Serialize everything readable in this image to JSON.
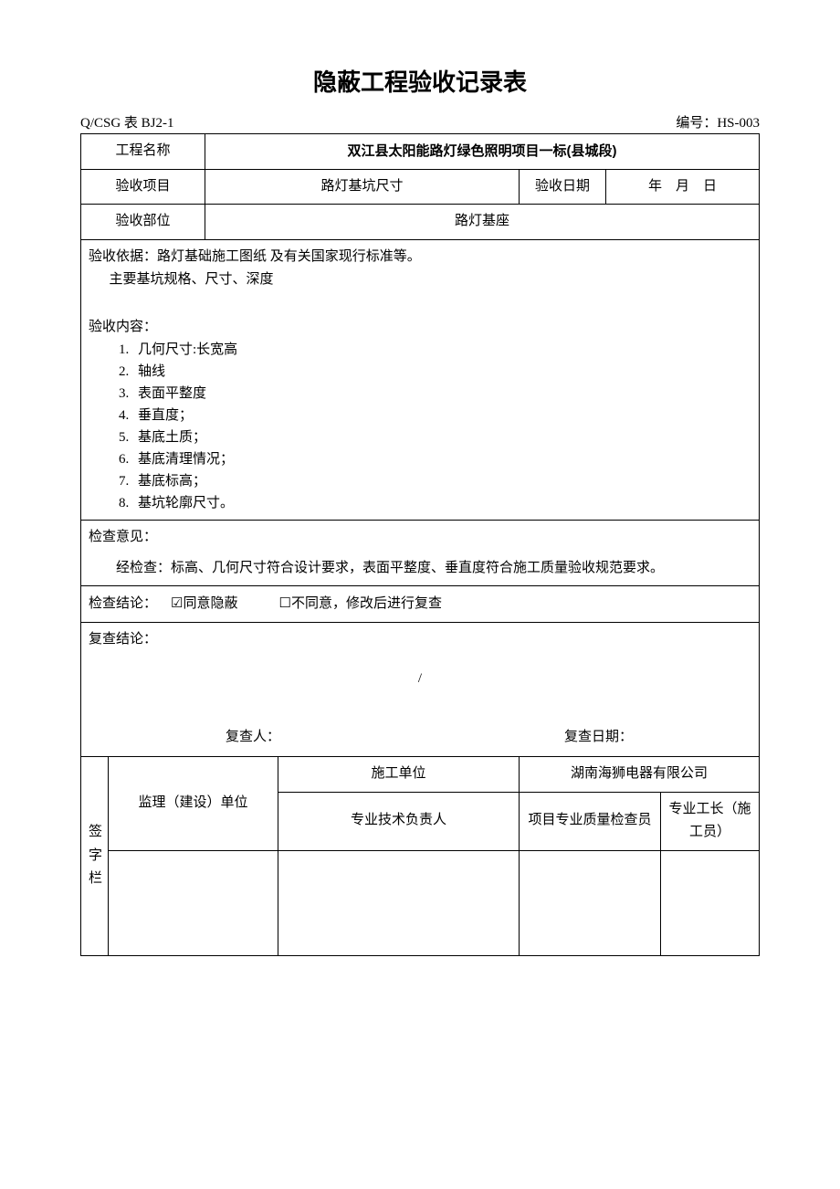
{
  "title": "隐蔽工程验收记录表",
  "meta": {
    "left": "Q/CSG 表 BJ2-1",
    "right_label": "编号：",
    "right_value": "HS-003"
  },
  "row1": {
    "label": "工程名称",
    "value": "双江县太阳能路灯绿色照明项目一标(县城段)"
  },
  "row2": {
    "label": "验收项目",
    "value": "路灯基坑尺寸",
    "date_label": "验收日期",
    "date_value": "年 月 日"
  },
  "row3": {
    "label": "验收部位",
    "value": "路灯基座"
  },
  "content": {
    "basis": "验收依据：路灯基础施工图纸 及有关国家现行标准等。",
    "spec": "主要基坑规格、尺寸、深度",
    "items_label": "验收内容：",
    "items": [
      "几何尺寸:长宽高",
      "轴线",
      "表面平整度",
      "垂直度；",
      "基底土质；",
      "基底清理情况；",
      "基底标高；",
      "基坑轮廓尺寸。"
    ]
  },
  "opinion": {
    "label": "检查意见：",
    "text": "经检查：标高、几何尺寸符合设计要求，表面平整度、垂直度符合施工质量验收规范要求。"
  },
  "conclusion": {
    "label": "检查结论：",
    "agree_box": "☑",
    "agree": "同意隐蔽",
    "disagree_box": "☐",
    "disagree": "不同意，修改后进行复查"
  },
  "recheck": {
    "label": "复查结论：",
    "slash": "/",
    "reviewer_label": "复查人：",
    "date_label": "复查日期："
  },
  "sig": {
    "vert": "签字栏",
    "supervisor": "监理（建设）单位",
    "construction_unit_label": "施工单位",
    "construction_unit_value": "湖南海狮电器有限公司",
    "tech_leader": "专业技术负责人",
    "quality_inspector": "项目专业质量检查员",
    "foreman": "专业工长（施工员）"
  }
}
